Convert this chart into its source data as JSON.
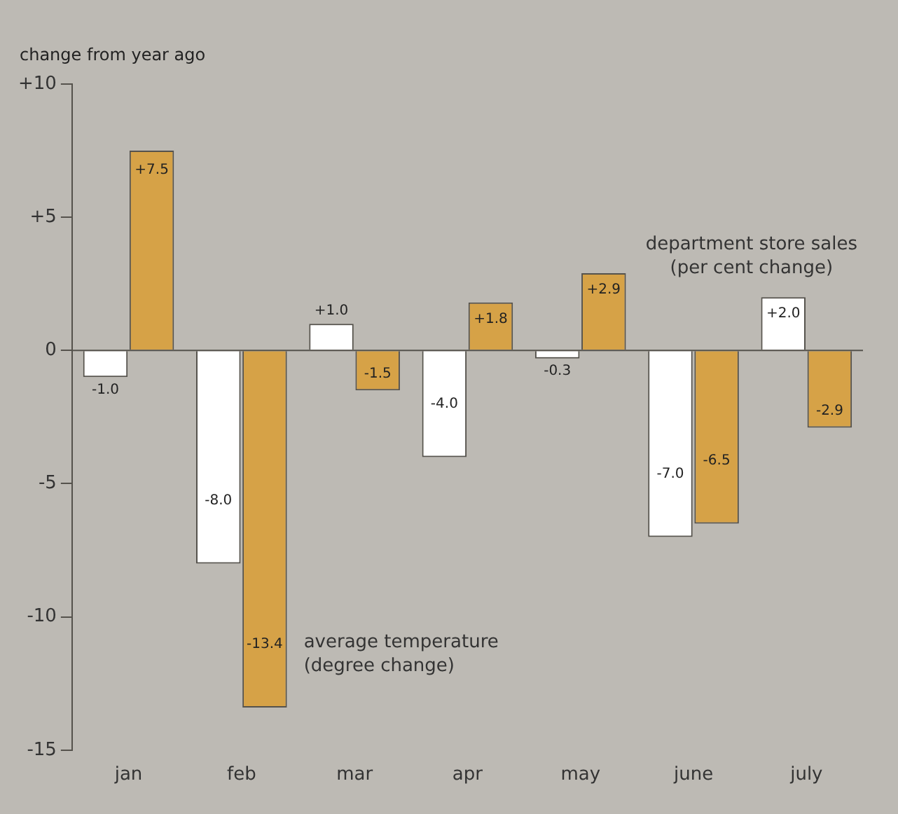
{
  "chart_data": {
    "type": "bar",
    "ylabel": "change from year ago",
    "categories": [
      "jan",
      "feb",
      "mar",
      "apr",
      "may",
      "june",
      "july"
    ],
    "series": [
      {
        "name": "department store sales\n(per cent change)",
        "color": "#ffffff",
        "values": [
          -1.0,
          -8.0,
          1.0,
          -4.0,
          -0.3,
          -7.0,
          2.0
        ],
        "value_labels": [
          "-1.0",
          "-8.0",
          "+1.0",
          "-4.0",
          "-0.3",
          "-7.0",
          "+2.0"
        ]
      },
      {
        "name": "average temperature\n(degree change)",
        "color": "#d6a247",
        "values": [
          7.5,
          -13.4,
          -1.5,
          1.8,
          2.9,
          -6.5,
          -2.9
        ],
        "value_labels": [
          "+7.5",
          "-13.4",
          "-1.5",
          "+1.8",
          "+2.9",
          "-6.5",
          "-2.9"
        ]
      }
    ],
    "ylim": [
      -15,
      10
    ],
    "yticks": [
      {
        "value": 10,
        "label": "+10"
      },
      {
        "value": 5,
        "label": "+5"
      },
      0,
      -5,
      -10,
      -15
    ],
    "legend": false
  }
}
